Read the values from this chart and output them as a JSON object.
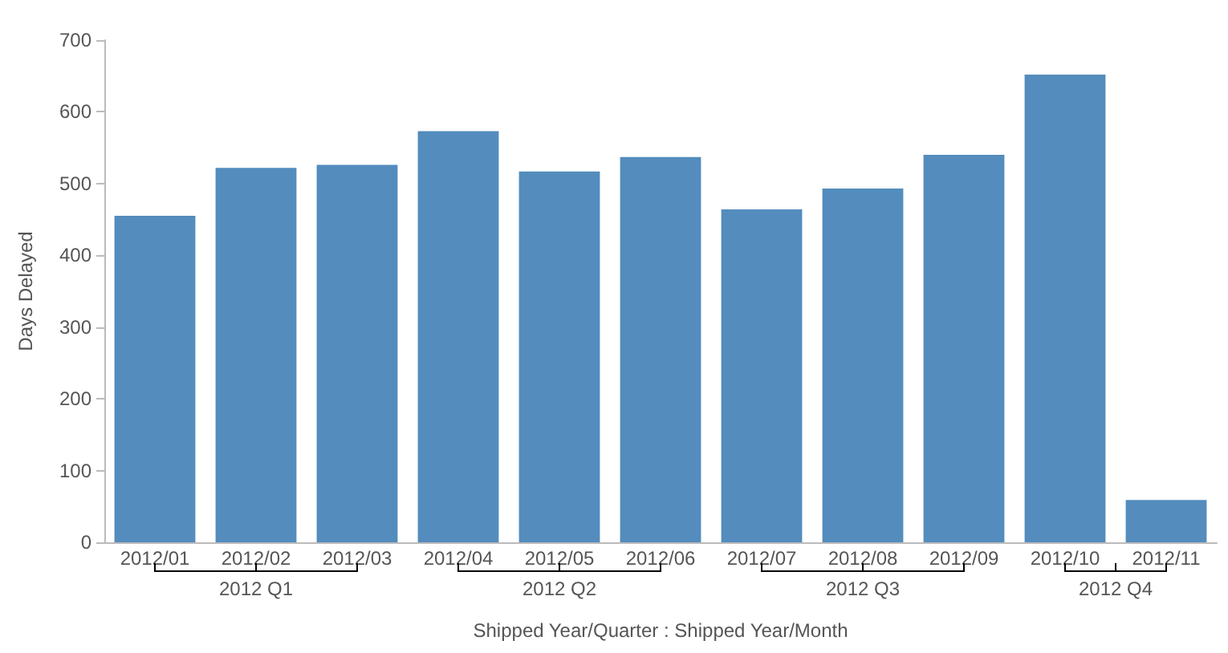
{
  "chart_data": {
    "type": "bar",
    "xlabel": "Shipped Year/Quarter : Shipped Year/Month",
    "ylabel": "Days Delayed",
    "categories": [
      "2012/01",
      "2012/02",
      "2012/03",
      "2012/04",
      "2012/05",
      "2012/06",
      "2012/07",
      "2012/08",
      "2012/09",
      "2012/10",
      "2012/11"
    ],
    "values": [
      455,
      522,
      526,
      573,
      517,
      537,
      464,
      493,
      540,
      652,
      59
    ],
    "color": "#538cbd",
    "ylim": [
      0,
      700
    ],
    "yticks": [
      0,
      100,
      200,
      300,
      400,
      500,
      600,
      700
    ],
    "grid": false,
    "annotations": [
      "2012 Q1",
      "2012 Q2",
      "2012 Q3",
      "2012 Q4"
    ]
  }
}
